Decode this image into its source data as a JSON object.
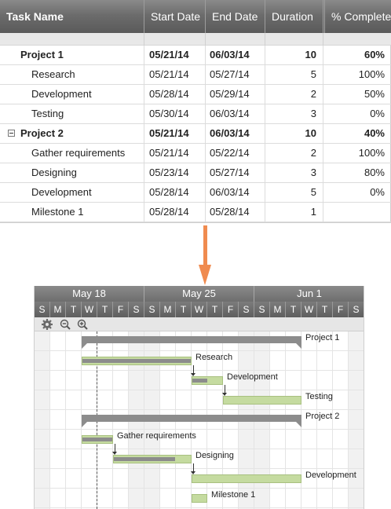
{
  "grid": {
    "columns": [
      "Task Name",
      "Start Date",
      "End Date",
      "Duration",
      "% Complete"
    ],
    "rows": [
      {
        "name": "Project 1",
        "start": "05/21/14",
        "end": "06/03/14",
        "duration": "10",
        "complete": "60%",
        "summary": true,
        "collapsible": false
      },
      {
        "name": "Research",
        "start": "05/21/14",
        "end": "05/27/14",
        "duration": "5",
        "complete": "100%",
        "summary": false
      },
      {
        "name": "Development",
        "start": "05/28/14",
        "end": "05/29/14",
        "duration": "2",
        "complete": "50%",
        "summary": false
      },
      {
        "name": "Testing",
        "start": "05/30/14",
        "end": "06/03/14",
        "duration": "3",
        "complete": "0%",
        "summary": false
      },
      {
        "name": "Project 2",
        "start": "05/21/14",
        "end": "06/03/14",
        "duration": "10",
        "complete": "40%",
        "summary": true,
        "collapsible": true
      },
      {
        "name": "Gather requirements",
        "start": "05/21/14",
        "end": "05/22/14",
        "duration": "2",
        "complete": "100%",
        "summary": false
      },
      {
        "name": "Designing",
        "start": "05/23/14",
        "end": "05/27/14",
        "duration": "3",
        "complete": "80%",
        "summary": false
      },
      {
        "name": "Development",
        "start": "05/28/14",
        "end": "06/03/14",
        "duration": "5",
        "complete": "0%",
        "summary": false
      },
      {
        "name": "Milestone 1",
        "start": "05/28/14",
        "end": "05/28/14",
        "duration": "1",
        "complete": "",
        "summary": false
      }
    ]
  },
  "gantt": {
    "months": [
      "May 18",
      "May 25",
      "Jun 1"
    ],
    "days": [
      "S",
      "M",
      "T",
      "W",
      "T",
      "F",
      "S",
      "S",
      "M",
      "T",
      "W",
      "T",
      "F",
      "S",
      "S",
      "M",
      "T",
      "W",
      "T",
      "F",
      "S"
    ],
    "toolbar_icons": [
      "gear-icon",
      "zoom-out-icon",
      "zoom-in-icon"
    ],
    "bar_labels": [
      "Project 1",
      "Research",
      "Development",
      "Testing",
      "Project 2",
      "Gather requirements",
      "Designing",
      "Development",
      "Milestone 1"
    ],
    "today_marker_day": "May 21",
    "colors": {
      "task_bar": "#c5dba0",
      "progress": "#8c8c8c",
      "summary": "#8c8c8c",
      "arrow": "#f08b4f"
    }
  }
}
